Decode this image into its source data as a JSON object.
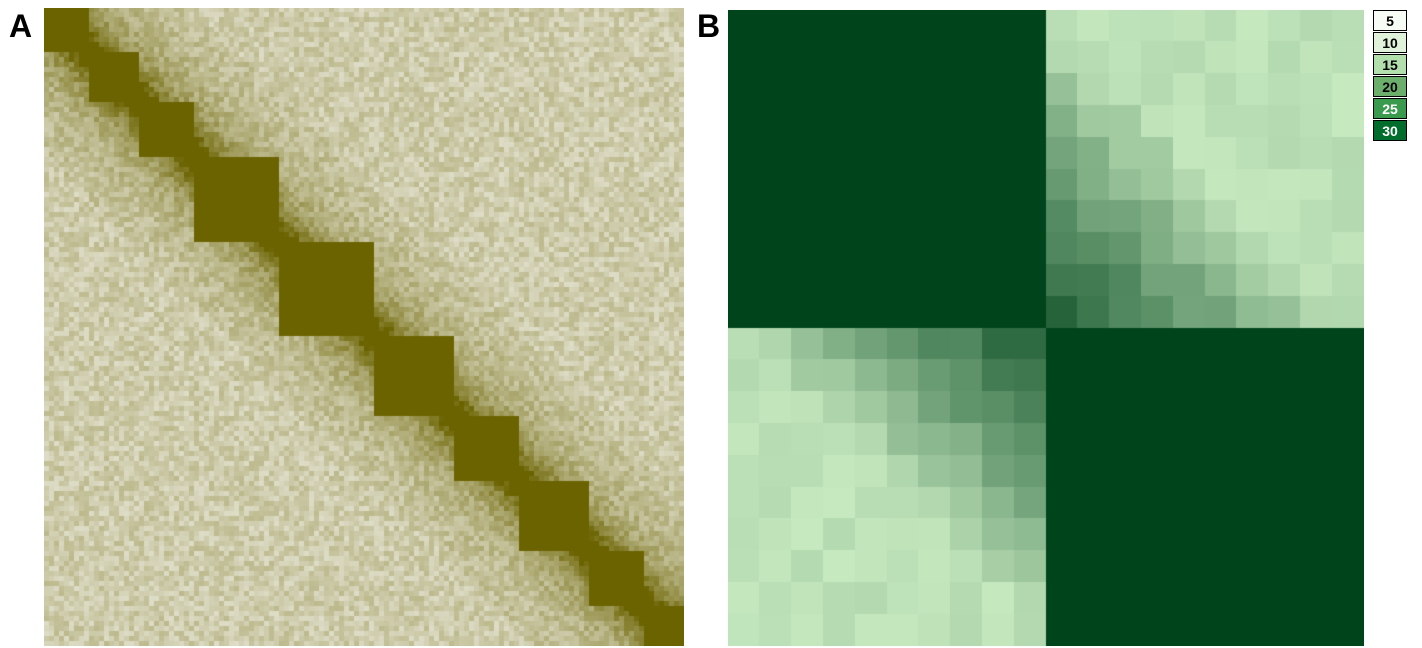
{
  "panels": {
    "a": {
      "label": "A"
    },
    "b": {
      "label": "B"
    }
  },
  "chart_data": [
    {
      "type": "heatmap",
      "panel": "A",
      "matrix_size": 128,
      "colors": {
        "low": "#f2f2ea",
        "high": "#6b6300"
      },
      "domains": [
        [
          0,
          9
        ],
        [
          9,
          19
        ],
        [
          19,
          30
        ],
        [
          30,
          47
        ],
        [
          47,
          66
        ],
        [
          66,
          82
        ],
        [
          82,
          95
        ],
        [
          95,
          109
        ],
        [
          109,
          120
        ],
        [
          120,
          128
        ]
      ]
    },
    {
      "type": "heatmap",
      "panel": "B",
      "grid_size": 20,
      "colors": {
        "low": "#c7e9c0",
        "high": "#00441b"
      },
      "blocks": [
        [
          0,
          10
        ],
        [
          10,
          20
        ]
      ],
      "legend": [
        {
          "value": "5",
          "color": "#f7fcf5",
          "text_color": "#000000"
        },
        {
          "value": "10",
          "color": "#e0f2da",
          "text_color": "#000000"
        },
        {
          "value": "15",
          "color": "#b2dfab",
          "text_color": "#000000"
        },
        {
          "value": "20",
          "color": "#6cae6c",
          "text_color": "#000000"
        },
        {
          "value": "25",
          "color": "#3a9a4e",
          "text_color": "#ffffff"
        },
        {
          "value": "30",
          "color": "#006d2c",
          "text_color": "#ffffff"
        }
      ]
    }
  ]
}
